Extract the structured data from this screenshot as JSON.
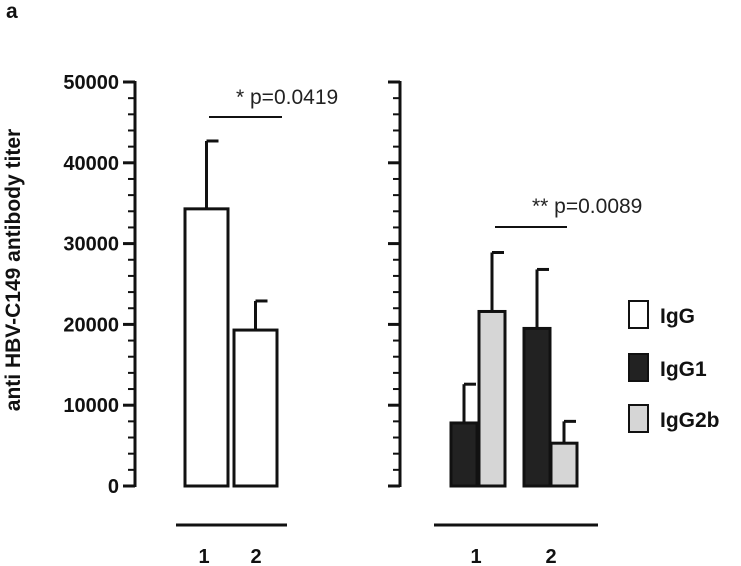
{
  "panel_label": "a",
  "colors": {
    "IgG": "#ffffff",
    "IgG1": "#222222",
    "IgG2b": "#d6d6d6",
    "outline": "#111111"
  },
  "chart_data": {
    "type": "bar",
    "ylabel": "anti HBV-C149 antibody titer",
    "ylim": [
      0,
      50000
    ],
    "yticks": [
      "0",
      "10000",
      "20000",
      "30000",
      "40000",
      "50000"
    ],
    "legend": {
      "placement": "right",
      "entries": [
        "IgG",
        "IgG1",
        "IgG2b"
      ]
    },
    "groups": [
      {
        "categories": [
          "1",
          "2"
        ],
        "series": [
          {
            "name": "IgG",
            "values": [
              34300,
              19300
            ],
            "errors": [
              8400,
              3600
            ]
          }
        ],
        "annotation": "* p=0.0419"
      },
      {
        "categories": [
          "1",
          "2"
        ],
        "series": [
          {
            "name": "IgG1",
            "values": [
              7800,
              19500
            ],
            "errors": [
              4800,
              7300
            ]
          },
          {
            "name": "IgG2b",
            "values": [
              21600,
              5300
            ],
            "errors": [
              7300,
              2700
            ]
          }
        ],
        "annotation": "** p=0.0089"
      }
    ]
  }
}
